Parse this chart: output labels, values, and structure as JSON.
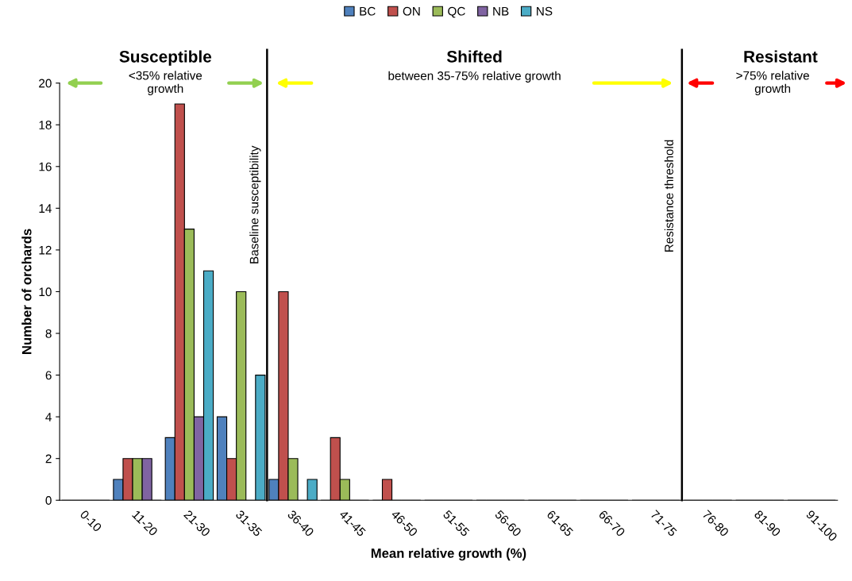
{
  "chart_data": {
    "type": "bar",
    "xlabel": "Mean relative growth (%)",
    "ylabel": "Number of orchards",
    "categories": [
      "0-10",
      "11-20",
      "21-30",
      "31-35",
      "36-40",
      "41-45",
      "46-50",
      "51-55",
      "56-60",
      "61-65",
      "66-70",
      "71-75",
      "76-80",
      "81-90",
      "91-100"
    ],
    "series": [
      {
        "name": "BC",
        "color": "#4f81bd",
        "values": [
          0,
          1,
          3,
          4,
          1,
          0,
          0,
          0,
          0,
          0,
          0,
          0,
          0,
          0,
          0
        ]
      },
      {
        "name": "ON",
        "color": "#c0504d",
        "values": [
          0,
          2,
          19,
          2,
          10,
          3,
          1,
          0,
          0,
          0,
          0,
          0,
          0,
          0,
          0
        ]
      },
      {
        "name": "QC",
        "color": "#9bbb59",
        "values": [
          0,
          2,
          13,
          10,
          2,
          1,
          0,
          0,
          0,
          0,
          0,
          0,
          0,
          0,
          0
        ]
      },
      {
        "name": "NB",
        "color": "#8064a2",
        "values": [
          0,
          2,
          4,
          0,
          0,
          0,
          0,
          0,
          0,
          0,
          0,
          0,
          0,
          0,
          0
        ]
      },
      {
        "name": "NS",
        "color": "#4bacc6",
        "values": [
          0,
          0,
          11,
          6,
          1,
          0,
          0,
          0,
          0,
          0,
          0,
          0,
          0,
          0,
          0
        ]
      }
    ],
    "ylim": [
      0,
      20
    ],
    "yticks": [
      0,
      2,
      4,
      6,
      8,
      10,
      12,
      14,
      16,
      18,
      20
    ],
    "grid": false,
    "legend": "top",
    "annotations": [
      "Susceptible",
      "<35% relative\ngrowth",
      "Shifted",
      "between 35-75% relative growth",
      "Resistant",
      ">75% relative\ngrowth",
      "Baseline susceptibility",
      "Resistance threshold"
    ]
  }
}
